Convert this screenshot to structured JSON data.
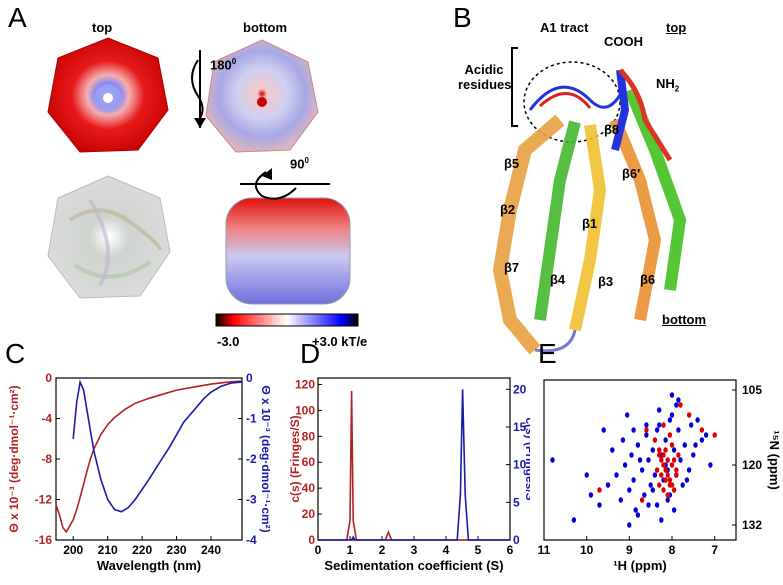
{
  "panelA": {
    "letter": "A",
    "top_label": "top",
    "bottom_label": "bottom",
    "rotation_1": "180",
    "rotation_1_sup": "0",
    "rotation_2": "90",
    "rotation_2_sup": "0",
    "colorbar": {
      "min_label": "-3.0",
      "max_label": "+3.0 kT/e",
      "colors": [
        "#000000",
        "#ff0000",
        "#ffffff",
        "#0000ff",
        "#000000"
      ]
    }
  },
  "panelB": {
    "letter": "B",
    "a1_tract": "A1 tract",
    "acidic_line1": "Acidic",
    "acidic_line2": "residues",
    "cooh": "COOH",
    "nh2": "NH",
    "nh2_sub": "2",
    "top": "top",
    "bottom": "bottom",
    "strands": [
      "β8",
      "β5",
      "β6'",
      "β2",
      "β1",
      "β7",
      "β4",
      "β3",
      "β6"
    ]
  },
  "panelC": {
    "letter": "C",
    "chart_data": {
      "type": "line",
      "xlabel": "Wavelength (nm)",
      "ylabel_left": "Θ x 10⁻³ (deg·dmol⁻¹·cm²)",
      "ylabel_right": "Θ x 10⁻³ (deg·dmol⁻¹·cm²)",
      "xlim": [
        195,
        249
      ],
      "ylim_left": [
        -16,
        0
      ],
      "ylim_right": [
        -4,
        0
      ],
      "x_ticks": [
        200,
        210,
        220,
        230,
        240
      ],
      "y_ticks_left": [
        0,
        -4,
        -8,
        -12,
        -16
      ],
      "y_ticks_right": [
        0,
        -1,
        -2,
        -3,
        -4
      ],
      "series": [
        {
          "color": "#b22222",
          "axis": "left",
          "x": [
            195,
            196,
            197,
            198,
            199,
            200,
            201,
            202,
            203,
            204,
            205,
            206,
            208,
            210,
            212,
            215,
            218,
            222,
            226,
            230,
            235,
            240,
            245,
            249
          ],
          "y": [
            -12.5,
            -13.5,
            -14.8,
            -15.2,
            -14.6,
            -14.0,
            -13.0,
            -11.8,
            -10.5,
            -9.2,
            -8.0,
            -7.0,
            -5.6,
            -4.6,
            -3.9,
            -3.1,
            -2.5,
            -2.0,
            -1.6,
            -1.2,
            -0.9,
            -0.6,
            -0.4,
            -0.3
          ]
        },
        {
          "color": "#1a1aaa",
          "axis": "right",
          "x": [
            200,
            201,
            202,
            203,
            204,
            205,
            206,
            208,
            210,
            212,
            214,
            216,
            218,
            220,
            222,
            225,
            228,
            230,
            232,
            235,
            238,
            240,
            243,
            246,
            249
          ],
          "y": [
            -1.5,
            -0.6,
            -0.1,
            -0.3,
            -0.8,
            -1.3,
            -1.8,
            -2.5,
            -3.0,
            -3.25,
            -3.3,
            -3.2,
            -3.0,
            -2.75,
            -2.5,
            -2.1,
            -1.7,
            -1.4,
            -1.1,
            -0.8,
            -0.5,
            -0.35,
            -0.2,
            -0.12,
            -0.1
          ]
        }
      ]
    }
  },
  "panelD": {
    "letter": "D",
    "chart_data": {
      "type": "line",
      "xlabel": "Sedimentation coefficient (S)",
      "ylabel_left": "c(s) (Fringes/S)",
      "ylabel_right": "c(s) (Fringes/S",
      "xlim": [
        0,
        6
      ],
      "ylim_left": [
        0,
        125
      ],
      "ylim_right": [
        0,
        21.5
      ],
      "x_ticks": [
        0,
        1,
        2,
        3,
        4,
        5,
        6
      ],
      "y_ticks_left": [
        0,
        20,
        40,
        60,
        80,
        100,
        120
      ],
      "y_ticks_right": [
        0,
        5,
        10,
        15,
        20
      ],
      "series": [
        {
          "color": "#b22222",
          "axis": "left",
          "x": [
            0,
            0.9,
            1.0,
            1.05,
            1.1,
            1.2,
            2.1,
            2.2,
            2.3,
            2.5,
            6
          ],
          "y": [
            0,
            0,
            15,
            115,
            15,
            0,
            0,
            6,
            0,
            0,
            0
          ]
        },
        {
          "color": "#1a1aaa",
          "axis": "right",
          "x": [
            0,
            1.05,
            1.1,
            1.15,
            4.35,
            4.45,
            4.52,
            4.6,
            4.7,
            6
          ],
          "y": [
            0,
            0,
            0.4,
            0,
            0,
            6,
            20,
            6,
            0,
            0
          ]
        }
      ]
    }
  },
  "panelE": {
    "letter": "E",
    "chart_data": {
      "type": "scatter",
      "xlabel": "¹H (ppm)",
      "ylabel": "¹⁵N (ppm)",
      "xlim": [
        11,
        6.5
      ],
      "ylim": [
        135,
        103
      ],
      "x_ticks": [
        11,
        10,
        9,
        8,
        7
      ],
      "y_ticks": [
        105,
        120,
        132
      ],
      "series": [
        {
          "color": "#0000dd",
          "x": [
            10.8,
            10.3,
            9.9,
            9.7,
            9.5,
            9.3,
            9.2,
            9.1,
            9.0,
            8.95,
            8.9,
            8.85,
            8.8,
            8.7,
            8.65,
            8.6,
            8.55,
            8.5,
            8.45,
            8.4,
            8.35,
            8.3,
            8.25,
            8.2,
            8.15,
            8.1,
            8.05,
            8.0,
            7.95,
            7.9,
            7.85,
            7.8,
            7.75,
            7.7,
            7.6,
            7.5,
            7.4,
            7.3,
            7.2,
            7.1,
            8.0,
            7.9,
            8.3,
            8.6,
            8.8,
            9.0,
            9.4,
            9.6,
            8.1,
            7.95,
            8.45,
            8.75,
            9.15,
            7.65,
            7.45,
            8.25,
            8.55,
            8.05,
            7.85,
            9.05,
            8.35,
            7.55,
            10.0,
            8.9,
            8.15
          ],
          "y": [
            119,
            131,
            126,
            128,
            124,
            122,
            127,
            120,
            125,
            118,
            123,
            129,
            116,
            121,
            126,
            114,
            119,
            124,
            117,
            122,
            128,
            112,
            118,
            123,
            115,
            121,
            126,
            110,
            117,
            122,
            113,
            119,
            124,
            116,
            121,
            118,
            111,
            115,
            114,
            120,
            106,
            108,
            109,
            112,
            130,
            132,
            117,
            113,
            127,
            129,
            125,
            119,
            115,
            123,
            116,
            131,
            128,
            111,
            107,
            110,
            113,
            112,
            122,
            113,
            120
          ]
        },
        {
          "color": "#dd0000",
          "x": [
            8.3,
            8.25,
            8.2,
            8.15,
            8.1,
            8.05,
            8.0,
            7.95,
            8.3,
            8.2,
            8.1,
            8.0,
            7.9,
            8.35,
            8.25,
            8.15,
            8.05,
            7.95,
            8.2,
            8.1,
            8.4,
            8.0,
            7.85,
            8.3,
            8.15,
            8.05,
            7.9,
            8.2,
            7.6,
            7.3,
            7.0,
            8.6,
            9.7,
            8.7,
            7.8
          ],
          "y": [
            118,
            119,
            120,
            121,
            122,
            123,
            124,
            125,
            117,
            118,
            119,
            120,
            121,
            121,
            122,
            123,
            124,
            119,
            125,
            126,
            115,
            116,
            118,
            124,
            117,
            114,
            122,
            112,
            110,
            113,
            114,
            113,
            125,
            127,
            108
          ]
        }
      ]
    }
  }
}
